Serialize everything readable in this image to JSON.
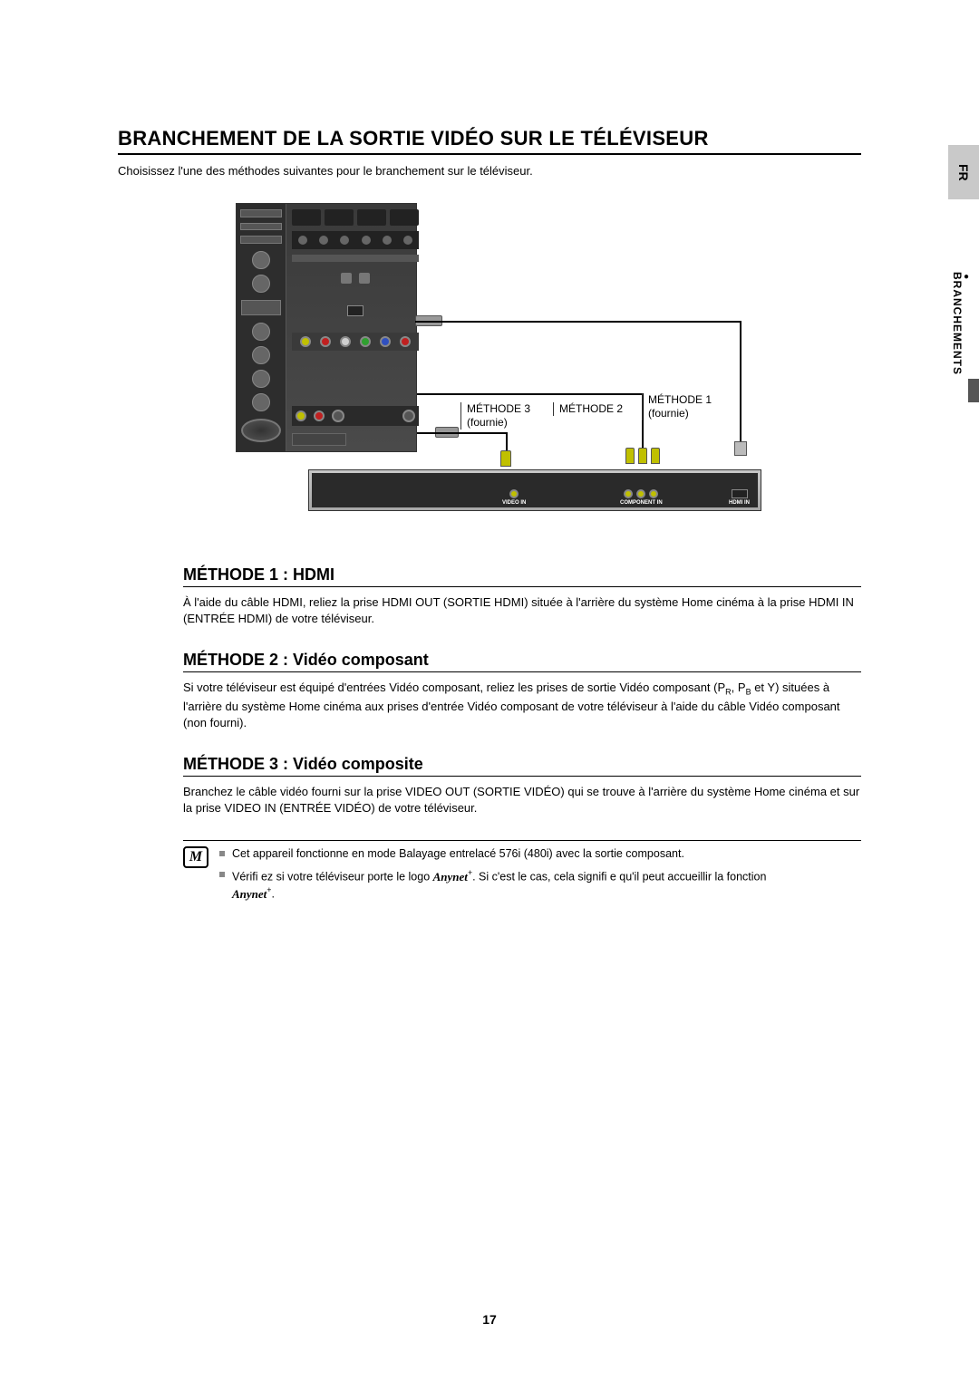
{
  "margin": {
    "lang": "FR",
    "section": "BRANCHEMENTS"
  },
  "title": "BRANCHEMENT DE LA SORTIE VIDÉO SUR LE TÉLÉVISEUR",
  "intro": "Choisissez l'une des méthodes suivantes pour le branchement sur le téléviseur.",
  "diagram": {
    "m1_label": "MÉTHODE 1",
    "m1_sub": "(fournie)",
    "m2_label": "MÉTHODE 2",
    "m3_label": "MÉTHODE 3",
    "m3_sub": "(fournie)",
    "tv_labels": {
      "video_in": "VIDEO IN",
      "component_in": "COMPONENT IN",
      "hdmi_in": "HDMI IN"
    }
  },
  "methods": {
    "m1": {
      "heading": "MÉTHODE 1 : HDMI",
      "body": "À l'aide du câble HDMI, reliez la prise HDMI OUT (SORTIE HDMI) située à l'arrière du système Home cinéma à la prise HDMI IN (ENTRÉE HDMI) de votre téléviseur."
    },
    "m2": {
      "heading": "MÉTHODE 2 : Vidéo composant",
      "body_pre": "Si votre téléviseur est équipé d'entrées Vidéo composant, reliez les prises de sortie Vidéo composant (P",
      "body_mid1": ", P",
      "body_mid2": " et Y) situées à l'arrière du système Home cinéma aux prises d'entrée Vidéo composant de votre téléviseur à l'aide du câble Vidéo composant (non fourni).",
      "sub_r": "R",
      "sub_b": "B"
    },
    "m3": {
      "heading": "MÉTHODE 3 : Vidéo composite",
      "body": "Branchez le câble vidéo fourni sur la prise VIDEO OUT (SORTIE VIDÉO) qui se trouve à l'arrière du système Home cinéma et sur la prise VIDEO IN (ENTRÉE VIDÉO) de votre téléviseur."
    }
  },
  "notes": {
    "n1": "Cet appareil fonctionne en mode Balayage entrelacé 576i (480i) avec la sortie composant.",
    "n2_pre": "Vérifi ez si votre téléviseur porte le logo ",
    "n2_mid": ". Si c'est le cas, cela signifi e qu'il peut accueillir la fonction ",
    "n2_end": ".",
    "anynet": "Anynet"
  },
  "page_number": "17",
  "colors": {
    "page_bg": "#ffffff",
    "text": "#000000",
    "tab_bg": "#c9c9c9",
    "device_bg": "#3a3a3a",
    "tv_bg": "#b0b0b0",
    "note_bullet": "#888888"
  },
  "typography": {
    "title_fontsize": 22,
    "section_fontsize": 18,
    "body_fontsize": 13,
    "note_fontsize": 12.5,
    "caption_fontsize": 12
  }
}
